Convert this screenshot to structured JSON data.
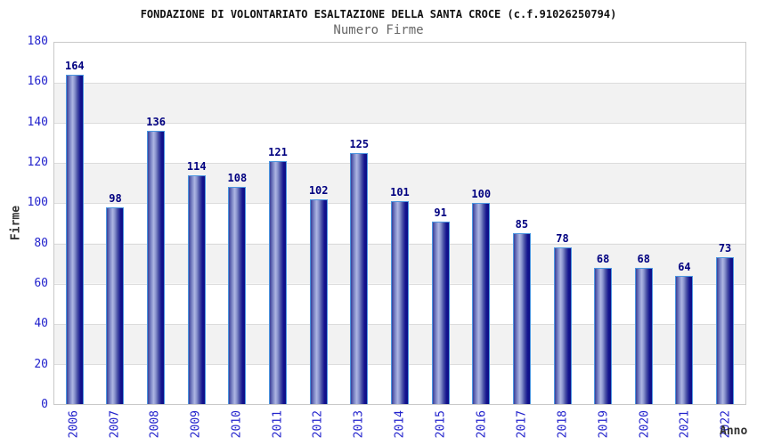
{
  "header": {
    "title": "FONDAZIONE DI VOLONTARIATO ESALTAZIONE DELLA SANTA CROCE (c.f.91026250794)",
    "subtitle": "Numero Firme"
  },
  "axes": {
    "y_label": "Firme",
    "x_label": "Anno"
  },
  "colors": {
    "title_text": "#111111",
    "subtitle_text": "#666666",
    "tick_blue": "#2222cc",
    "value_navy": "#000080",
    "axis_title_dark": "#333333",
    "band_gray": "#f2f2f2",
    "band_white": "#ffffff",
    "gridline": "#dcdcdc",
    "plot_border": "#c9c9c9",
    "bar_border_lightblue": "#4c96e0",
    "bar_dark": "#0b0b85",
    "bar_light": "#aeb6e3"
  },
  "chart_data": {
    "type": "bar",
    "title": "FONDAZIONE DI VOLONTARIATO ESALTAZIONE DELLA SANTA CROCE (c.f.91026250794)",
    "subtitle": "Numero Firme",
    "categories": [
      "2006",
      "2007",
      "2008",
      "2009",
      "2010",
      "2011",
      "2012",
      "2013",
      "2014",
      "2015",
      "2016",
      "2017",
      "2018",
      "2019",
      "2020",
      "2021",
      "2022"
    ],
    "values": [
      164,
      98,
      136,
      114,
      108,
      121,
      102,
      125,
      101,
      91,
      100,
      85,
      78,
      68,
      68,
      64,
      73
    ],
    "xlabel": "Anno",
    "ylabel": "Firme",
    "ylim": [
      0,
      180
    ],
    "y_ticks": [
      0,
      20,
      40,
      60,
      80,
      100,
      120,
      140,
      160,
      180
    ],
    "grid": true,
    "bands": "alternating horizontal white/gray every 20 units",
    "legend_position": "none",
    "bar_style": "cylinder gradient blue, value labels above bars"
  }
}
